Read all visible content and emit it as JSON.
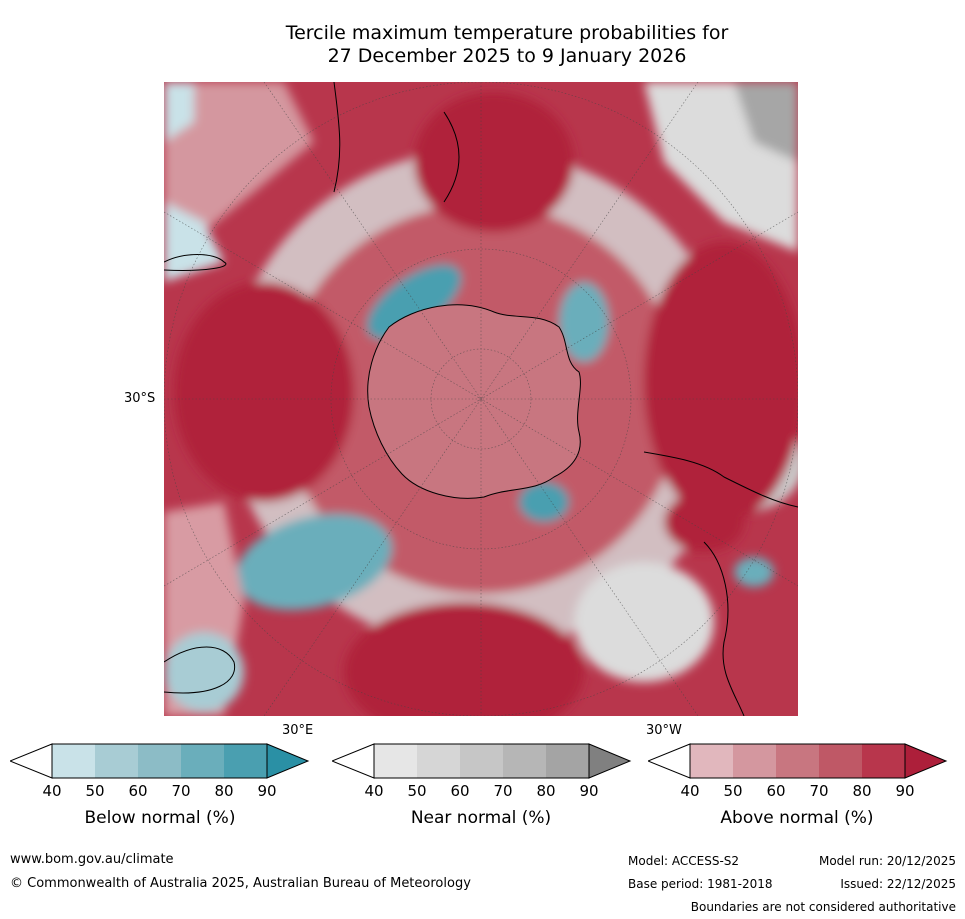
{
  "title_line1": "Tercile maximum temperature probabilities for",
  "title_line2": "27 December 2025 to 9 January 2026",
  "map": {
    "lat_label": "30°S",
    "lon_labels": [
      "30°E",
      "30°W"
    ],
    "colors": {
      "above": [
        "#e6bcc1",
        "#d89ba3",
        "#cc7882",
        "#c25a67",
        "#b83a4c",
        "#b0203a"
      ],
      "near": [
        "#ededed",
        "#dcdcdc",
        "#cbcbcb",
        "#bababa",
        "#a6a6a6",
        "#8a8a8a"
      ],
      "below": [
        "#c9e2e8",
        "#a8ccd4",
        "#8cbcc6",
        "#6aaebb",
        "#4a9fb0",
        "#2a90a5"
      ]
    }
  },
  "colorbars": [
    {
      "label": "Below normal (%)",
      "ticks": [
        "40",
        "50",
        "60",
        "70",
        "80",
        "90"
      ],
      "colors": [
        "#c9e2e8",
        "#a8ccd4",
        "#8cbcc6",
        "#6aaebb",
        "#4a9fb0",
        "#2a90a5"
      ]
    },
    {
      "label": "Near normal (%)",
      "ticks": [
        "40",
        "50",
        "60",
        "70",
        "80",
        "90"
      ],
      "colors": [
        "#e6e6e6",
        "#d6d6d6",
        "#c6c6c6",
        "#b6b6b6",
        "#a4a4a4",
        "#808080"
      ]
    },
    {
      "label": "Above normal (%)",
      "ticks": [
        "40",
        "50",
        "60",
        "70",
        "80",
        "90"
      ],
      "colors": [
        "#e1b7bd",
        "#d4979f",
        "#c87680",
        "#bf5866",
        "#b8364c",
        "#ad1f3a"
      ]
    }
  ],
  "footer": {
    "website": "www.bom.gov.au/climate",
    "copyright": "© Commonwealth of Australia 2025, Australian Bureau of Meteorology",
    "model": "Model: ACCESS-S2",
    "base_period": "Base period: 1981-2018",
    "model_run": "Model run: 20/12/2025",
    "issued": "Issued: 22/12/2025",
    "disclaimer": "Boundaries are not considered authoritative"
  }
}
